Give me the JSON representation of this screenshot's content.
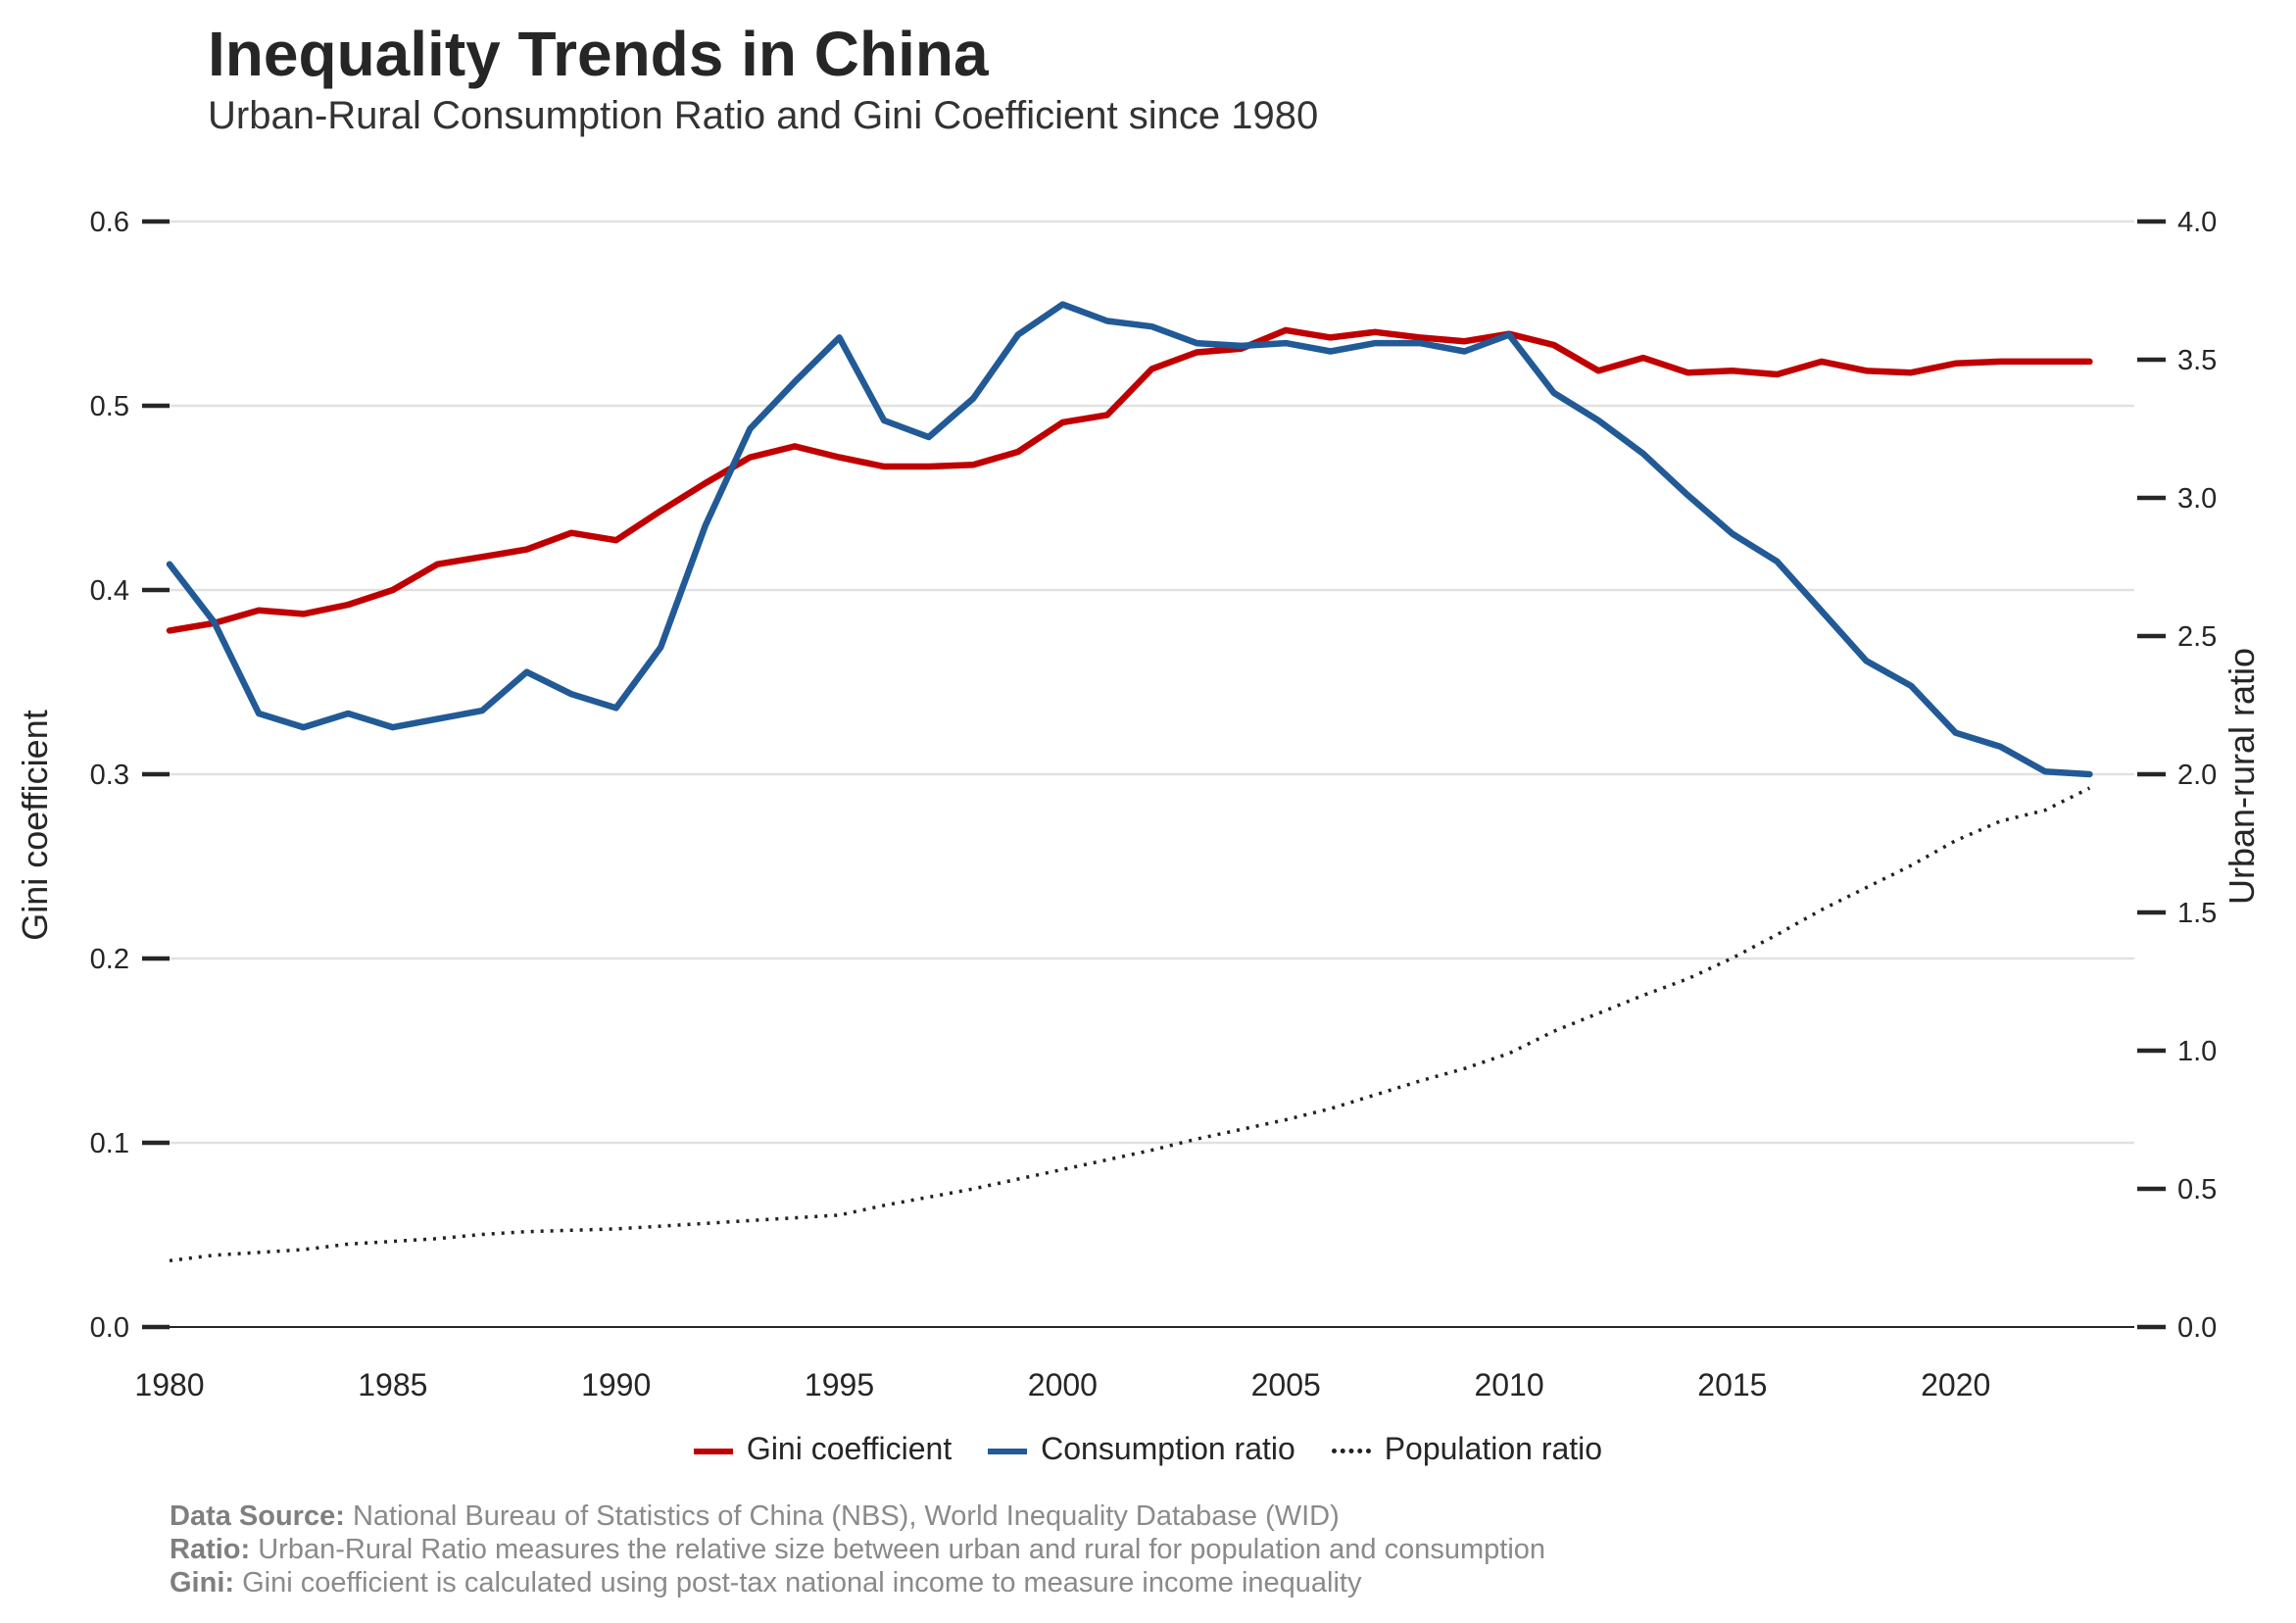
{
  "title": "Inequality Trends in China",
  "subtitle": "Urban-Rural Consumption Ratio and Gini Coefficient since 1980",
  "legend": {
    "gini": "Gini coefficient",
    "consumption": "Consumption ratio",
    "population": "Population ratio"
  },
  "footnotes": {
    "source_label": "Data Source:",
    "source_text": "National Bureau of Statistics of China (NBS), World Inequality Database (WID)",
    "ratio_label": "Ratio:",
    "ratio_text": "Urban-Rural Ratio measures the relative size between urban and rural for population and consumption",
    "gini_label": "Gini:",
    "gini_text": "Gini coefficient is calculated using post-tax national income to measure income inequality"
  },
  "colors": {
    "gini": "#c00000",
    "consumption": "#215a96",
    "population": "#222222",
    "grid": "#e1e1e1",
    "text": "#262626"
  },
  "chart_data": {
    "type": "line",
    "title": "Inequality Trends in China",
    "subtitle": "Urban-Rural Consumption Ratio and Gini Coefficient since 1980",
    "xlabel": "",
    "ylabel_left": "Gini coefficient",
    "ylabel_right": "Urban-rural ratio",
    "xlim": [
      1980,
      2024
    ],
    "ylim_left": [
      0,
      0.6
    ],
    "ylim_right": [
      0,
      4.0
    ],
    "xticks": [
      1980,
      1985,
      1990,
      1995,
      2000,
      2005,
      2010,
      2015,
      2020
    ],
    "yticks_left": [
      "0.0",
      "0.1",
      "0.2",
      "0.3",
      "0.4",
      "0.5",
      "0.6"
    ],
    "yticks_right": [
      "0.0",
      "0.5",
      "1.0",
      "1.5",
      "2.0",
      "2.5",
      "3.0",
      "3.5",
      "4.0"
    ],
    "grid": "horizontal",
    "legend_position": "bottom-center",
    "x": [
      1980,
      1981,
      1982,
      1983,
      1984,
      1985,
      1986,
      1987,
      1988,
      1989,
      1990,
      1991,
      1992,
      1993,
      1994,
      1995,
      1996,
      1997,
      1998,
      1999,
      2000,
      2001,
      2002,
      2003,
      2004,
      2005,
      2006,
      2007,
      2008,
      2009,
      2010,
      2011,
      2012,
      2013,
      2014,
      2015,
      2016,
      2017,
      2018,
      2019,
      2020,
      2021,
      2022,
      2023
    ],
    "series": [
      {
        "name": "Gini coefficient",
        "axis": "left",
        "style": "solid",
        "values": [
          0.378,
          0.382,
          0.389,
          0.387,
          0.392,
          0.4,
          0.414,
          0.418,
          0.422,
          0.431,
          0.427,
          0.443,
          0.458,
          0.472,
          0.478,
          0.472,
          0.467,
          0.467,
          0.468,
          0.475,
          0.491,
          0.495,
          0.52,
          0.529,
          0.531,
          0.541,
          0.537,
          0.54,
          0.537,
          0.535,
          0.539,
          0.533,
          0.519,
          0.526,
          0.518,
          0.519,
          0.517,
          0.524,
          0.519,
          0.518,
          0.523,
          0.524,
          0.524,
          0.524
        ]
      },
      {
        "name": "Consumption ratio",
        "axis": "right",
        "style": "solid",
        "values": [
          2.76,
          2.55,
          2.22,
          2.17,
          2.22,
          2.17,
          2.2,
          2.23,
          2.37,
          2.29,
          2.24,
          2.46,
          2.9,
          3.25,
          3.42,
          3.58,
          3.28,
          3.22,
          3.36,
          3.59,
          3.7,
          3.64,
          3.62,
          3.56,
          3.55,
          3.56,
          3.53,
          3.56,
          3.56,
          3.53,
          3.59,
          3.38,
          3.28,
          3.16,
          3.01,
          2.87,
          2.77,
          2.59,
          2.41,
          2.32,
          2.15,
          2.1,
          2.01,
          2.0
        ]
      },
      {
        "name": "Population ratio",
        "axis": "right",
        "style": "dotted",
        "values": [
          0.24,
          0.26,
          0.27,
          0.28,
          0.3,
          0.31,
          0.32,
          0.335,
          0.345,
          0.35,
          0.355,
          0.365,
          0.375,
          0.385,
          0.395,
          0.405,
          0.44,
          0.47,
          0.5,
          0.535,
          0.57,
          0.605,
          0.64,
          0.68,
          0.715,
          0.75,
          0.79,
          0.84,
          0.89,
          0.935,
          0.99,
          1.07,
          1.135,
          1.2,
          1.26,
          1.335,
          1.42,
          1.51,
          1.59,
          1.67,
          1.76,
          1.83,
          1.87,
          1.95
        ]
      }
    ]
  }
}
